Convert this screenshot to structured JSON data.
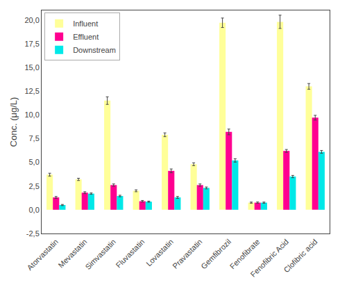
{
  "chart_data": {
    "type": "bar",
    "categories": [
      "Atorvastatin",
      "Mevastatin",
      "Simvastatin",
      "Fluvastatin",
      "Lovastatin",
      "Pravastatin",
      "Gemfibrozil",
      "Fenofibrate",
      "Fenofibric Acid",
      "Clofibric acid"
    ],
    "series": [
      {
        "name": "Influent",
        "color": "#ffff99",
        "values": [
          3.7,
          3.2,
          11.5,
          2.0,
          7.9,
          4.8,
          19.7,
          0.75,
          19.8,
          13.0
        ],
        "errors": [
          0.15,
          0.12,
          0.4,
          0.1,
          0.2,
          0.15,
          0.5,
          0.06,
          0.7,
          0.3
        ]
      },
      {
        "name": "Effluent",
        "color": "#ff0090",
        "values": [
          1.3,
          1.8,
          2.6,
          0.9,
          4.1,
          2.6,
          8.2,
          0.75,
          6.2,
          9.7
        ],
        "errors": [
          0.1,
          0.1,
          0.12,
          0.08,
          0.2,
          0.12,
          0.3,
          0.07,
          0.15,
          0.25
        ]
      },
      {
        "name": "Downstream",
        "color": "#00e8e8",
        "values": [
          0.5,
          1.7,
          1.45,
          0.85,
          1.3,
          2.3,
          5.2,
          0.75,
          3.5,
          6.1
        ],
        "errors": [
          0.06,
          0.07,
          0.08,
          0.06,
          0.1,
          0.1,
          0.18,
          0.06,
          0.12,
          0.15
        ]
      }
    ],
    "ylabel": "Conc. (μg/L)",
    "ylim": [
      -2.5,
      21.0
    ],
    "yticks": [
      {
        "value": -2.5,
        "label": "-2,5"
      },
      {
        "value": 0.0,
        "label": "0,0"
      },
      {
        "value": 2.5,
        "label": "2,5"
      },
      {
        "value": 5.0,
        "label": "5,0"
      },
      {
        "value": 7.5,
        "label": "7,5"
      },
      {
        "value": 10.0,
        "label": "10,0"
      },
      {
        "value": 12.5,
        "label": "12,5"
      },
      {
        "value": 15.0,
        "label": "15,0"
      },
      {
        "value": 17.5,
        "label": "17,5"
      },
      {
        "value": 20.0,
        "label": "20,0"
      }
    ],
    "grid": false,
    "legend": "upper left"
  }
}
